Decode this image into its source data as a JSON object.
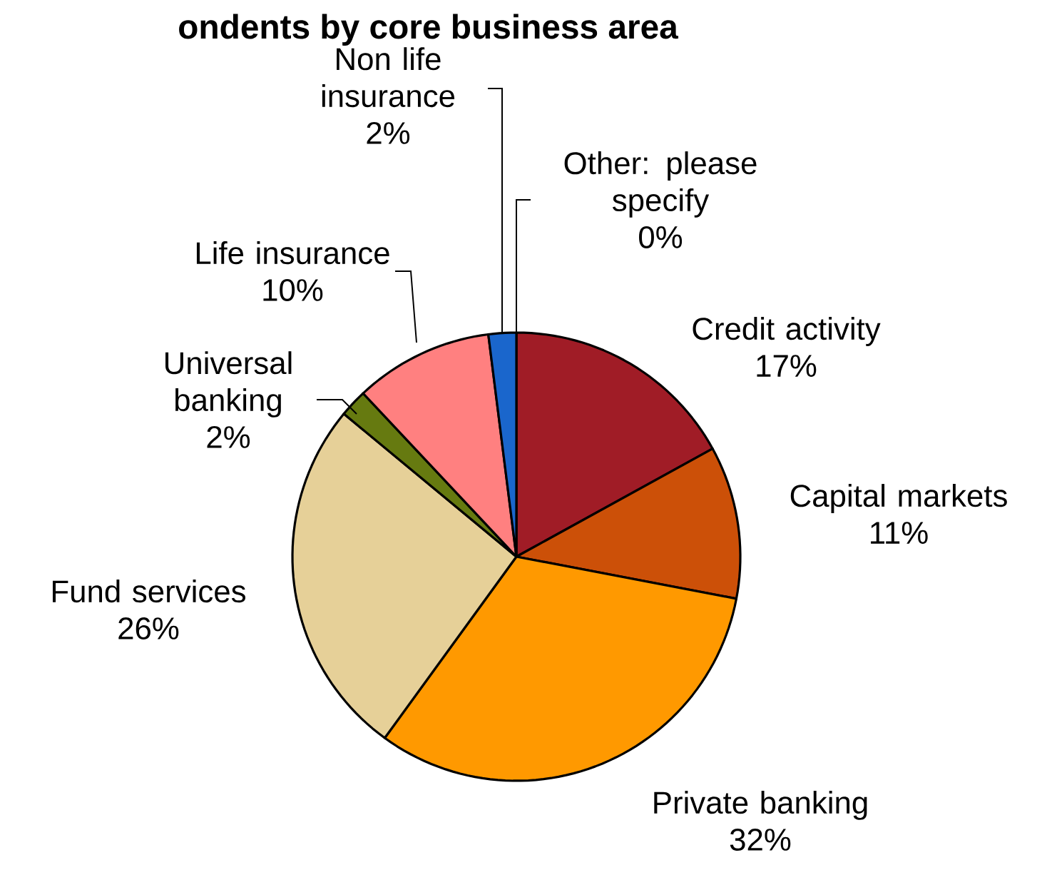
{
  "chart_data": {
    "type": "pie",
    "title": "ondents by core business area",
    "categories": [
      "Credit activity",
      "Capital markets",
      "Private banking",
      "Fund services",
      "Universal banking",
      "Life insurance",
      "Non life insurance",
      "Other: please specify"
    ],
    "values": [
      17,
      11,
      32,
      26,
      2,
      10,
      2,
      0
    ],
    "value_labels": [
      "17%",
      "11%",
      "32%",
      "26%",
      "2%",
      "10%",
      "2%",
      "0%"
    ],
    "colors": [
      "#a01c26",
      "#cc5008",
      "#ff9900",
      "#e6d098",
      "#667a10",
      "#ff8080",
      "#1a66cc",
      "#7f7f7f"
    ]
  }
}
